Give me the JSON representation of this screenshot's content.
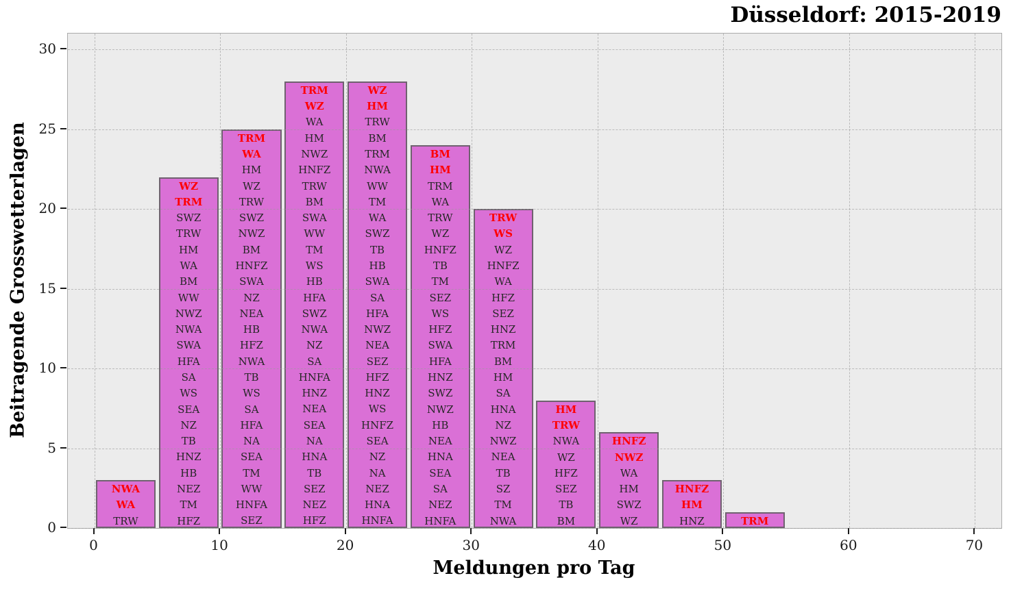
{
  "chart_data": {
    "type": "bar",
    "title": "Düsseldorf: 2015-2019",
    "xlabel": "Meldungen pro Tag",
    "ylabel": "Beitragende Grosswetterlagen",
    "xlim": [
      -2.1,
      72.1
    ],
    "ylim": [
      0,
      31
    ],
    "x_ticks": [
      0,
      10,
      20,
      30,
      40,
      50,
      60,
      70
    ],
    "y_ticks": [
      0,
      5,
      10,
      15,
      20,
      25,
      30
    ],
    "grid": "dashed, both axes",
    "legend": "none",
    "bar_width": 4.75,
    "colors": {
      "bar_fill": "#DA70D6",
      "bar_edge": "#6f616f",
      "highlight_text": "#ff0000",
      "label_text": "#262626",
      "plot_bg": "#ececec",
      "grid": "#9a9a9a"
    },
    "note": "Each bar lists contributing Grosswetterlagen codes top-to-bottom; bar height equals number of codes; first red_count codes are highlighted red.",
    "bars": [
      {
        "x_center": 2.5,
        "height": 3,
        "red_count": 2,
        "labels": [
          "NWA",
          "WA",
          "TRW"
        ]
      },
      {
        "x_center": 7.5,
        "height": 22,
        "red_count": 2,
        "labels": [
          "WZ",
          "TRM",
          "SWZ",
          "TRW",
          "HM",
          "WA",
          "BM",
          "WW",
          "NWZ",
          "NWA",
          "SWA",
          "HFA",
          "SA",
          "WS",
          "SEA",
          "NZ",
          "TB",
          "HNZ",
          "HB",
          "NEZ",
          "TM",
          "HFZ"
        ]
      },
      {
        "x_center": 12.5,
        "height": 25,
        "red_count": 2,
        "labels": [
          "TRM",
          "WA",
          "HM",
          "WZ",
          "TRW",
          "SWZ",
          "NWZ",
          "BM",
          "HNFZ",
          "SWA",
          "NZ",
          "NEA",
          "HB",
          "HFZ",
          "NWA",
          "TB",
          "WS",
          "SA",
          "HFA",
          "NA",
          "SEA",
          "TM",
          "WW",
          "HNFA",
          "SEZ"
        ]
      },
      {
        "x_center": 17.5,
        "height": 28,
        "red_count": 2,
        "labels": [
          "TRM",
          "WZ",
          "WA",
          "HM",
          "NWZ",
          "HNFZ",
          "TRW",
          "BM",
          "SWA",
          "WW",
          "TM",
          "WS",
          "HB",
          "HFA",
          "SWZ",
          "NWA",
          "NZ",
          "SA",
          "HNFA",
          "HNZ",
          "NEA",
          "SEA",
          "NA",
          "HNA",
          "TB",
          "SEZ",
          "NEZ",
          "HFZ"
        ]
      },
      {
        "x_center": 22.5,
        "height": 28,
        "red_count": 2,
        "labels": [
          "WZ",
          "HM",
          "TRW",
          "BM",
          "TRM",
          "NWA",
          "WW",
          "TM",
          "WA",
          "SWZ",
          "TB",
          "HB",
          "SWA",
          "SA",
          "HFA",
          "NWZ",
          "NEA",
          "SEZ",
          "HFZ",
          "HNZ",
          "WS",
          "HNFZ",
          "SEA",
          "NZ",
          "NA",
          "NEZ",
          "HNA",
          "HNFA"
        ]
      },
      {
        "x_center": 27.5,
        "height": 24,
        "red_count": 2,
        "labels": [
          "BM",
          "HM",
          "TRM",
          "WA",
          "TRW",
          "WZ",
          "HNFZ",
          "TB",
          "TM",
          "SEZ",
          "WS",
          "HFZ",
          "SWA",
          "HFA",
          "HNZ",
          "SWZ",
          "NWZ",
          "HB",
          "NEA",
          "HNA",
          "SEA",
          "SA",
          "NEZ",
          "HNFA"
        ]
      },
      {
        "x_center": 32.5,
        "height": 20,
        "red_count": 2,
        "labels": [
          "TRW",
          "WS",
          "WZ",
          "HNFZ",
          "WA",
          "HFZ",
          "SEZ",
          "HNZ",
          "TRM",
          "BM",
          "HM",
          "SA",
          "HNA",
          "NZ",
          "NWZ",
          "NEA",
          "TB",
          "SZ",
          "TM",
          "NWA"
        ]
      },
      {
        "x_center": 37.5,
        "height": 8,
        "red_count": 2,
        "labels": [
          "HM",
          "TRW",
          "NWA",
          "WZ",
          "HFZ",
          "SEZ",
          "TB",
          "BM"
        ]
      },
      {
        "x_center": 42.5,
        "height": 6,
        "red_count": 2,
        "labels": [
          "HNFZ",
          "NWZ",
          "WA",
          "HM",
          "SWZ",
          "WZ"
        ]
      },
      {
        "x_center": 47.5,
        "height": 3,
        "red_count": 2,
        "labels": [
          "HNFZ",
          "HM",
          "HNZ"
        ]
      },
      {
        "x_center": 52.5,
        "height": 1,
        "red_count": 1,
        "labels": [
          "TRM"
        ]
      }
    ]
  }
}
